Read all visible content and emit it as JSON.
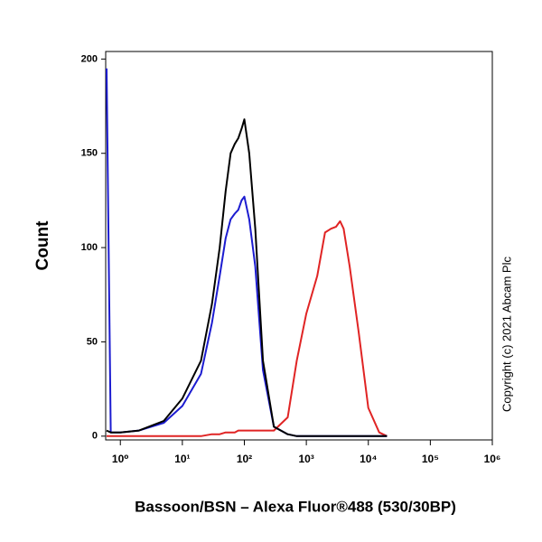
{
  "chart_data": {
    "type": "line",
    "ylabel": "Count",
    "xlabel": "Bassoon/BSN – Alexa Fluor®488 (530/30BP)",
    "copyright": "Copyright (c) 2021 Abcam Plc",
    "xscale": "log",
    "xlim": [
      0.58,
      1000000
    ],
    "ylim": [
      -2,
      204
    ],
    "xticks": [
      {
        "value": 1,
        "label": "10⁰"
      },
      {
        "value": 10,
        "label": "10¹"
      },
      {
        "value": 100,
        "label": "10²"
      },
      {
        "value": 1000,
        "label": "10³"
      },
      {
        "value": 10000,
        "label": "10⁴"
      },
      {
        "value": 100000,
        "label": "10⁵"
      },
      {
        "value": 1000000,
        "label": "10⁶"
      }
    ],
    "yticks": [
      0,
      50,
      100,
      150,
      200
    ],
    "x": [
      0.6,
      0.7,
      1,
      2,
      5,
      10,
      20,
      30,
      40,
      50,
      60,
      70,
      80,
      90,
      100,
      120,
      150,
      200,
      300,
      500,
      700,
      1000,
      1500,
      2000,
      2500,
      3000,
      3500,
      4000,
      5000,
      7000,
      10000,
      15000,
      20000
    ],
    "series": [
      {
        "color": "#000000",
        "values": [
          3,
          2,
          2,
          3,
          8,
          20,
          40,
          70,
          100,
          130,
          150,
          155,
          158,
          163,
          168,
          150,
          110,
          40,
          5,
          1,
          0,
          0,
          0,
          0,
          0,
          0,
          0,
          0,
          0,
          0,
          0,
          0,
          0
        ]
      },
      {
        "color": "#1c1cd0",
        "values": [
          195,
          2,
          2,
          3,
          7,
          16,
          33,
          60,
          85,
          105,
          115,
          118,
          120,
          125,
          127,
          115,
          90,
          35,
          5,
          1,
          0,
          0,
          0,
          0,
          0,
          0,
          0,
          0,
          0,
          0,
          0,
          0,
          0
        ]
      },
      {
        "color": "#e02424",
        "values": [
          0,
          0,
          0,
          0,
          0,
          0,
          0,
          1,
          1,
          2,
          2,
          2,
          3,
          3,
          3,
          3,
          3,
          3,
          3,
          10,
          40,
          65,
          85,
          108,
          110,
          111,
          114,
          110,
          90,
          55,
          15,
          2,
          0
        ]
      }
    ]
  }
}
